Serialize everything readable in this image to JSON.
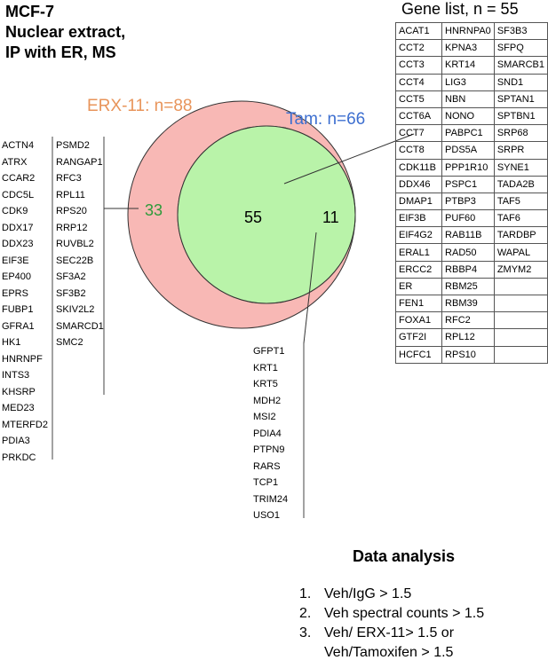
{
  "title": {
    "line1": "MCF-7",
    "line2": "Nuclear extract,",
    "line3": "IP with ER, MS"
  },
  "gene_list_title": "Gene list, n = 55",
  "venn": {
    "left_label": "ERX-11: n=88",
    "right_label": "Tam: n=66",
    "left_only_count": "33",
    "intersection_count": "55",
    "right_only_count": "11",
    "left_color": "#f8b8b5",
    "right_color": "#b8f7f8",
    "intersection_color": "#b9f3a9",
    "left_label_color": "#e8945a",
    "right_label_color": "#3d6fd0",
    "left_count_color": "#2d9a3a"
  },
  "erx_only_genes": {
    "column1": [
      "ACTN4",
      "ATRX",
      "CCAR2",
      "CDC5L",
      "CDK9",
      "DDX17",
      "DDX23",
      "EIF3E",
      "EP400",
      "EPRS",
      "FUBP1",
      "GFRA1",
      "HK1",
      "HNRNPF",
      "INTS3",
      "KHSRP",
      "MED23",
      "MTERFD2",
      "PDIA3",
      "PRKDC"
    ],
    "column2": [
      "PSMD2",
      "RANGAP1",
      "RFC3",
      "RPL11",
      "RPS20",
      "RRP12",
      "RUVBL2",
      "SEC22B",
      "SF3A2",
      "SF3B2",
      "SKIV2L2",
      "SMARCD1",
      "SMC2"
    ]
  },
  "tam_only_genes": [
    "GFPT1",
    "KRT1",
    "KRT5",
    "MDH2",
    "MSI2",
    "PDIA4",
    "PTPN9",
    "RARS",
    "TCP1",
    "TRIM24",
    "USO1"
  ],
  "gene_table": {
    "column1": [
      "ACAT1",
      "CCT2",
      "CCT3",
      "CCT4",
      "CCT5",
      "CCT6A",
      "CCT7",
      "CCT8",
      "CDK11B",
      "DDX46",
      "DMAP1",
      "EIF3B",
      "EIF4G2",
      "ERAL1",
      "ERCC2",
      "ER",
      "FEN1",
      "FOXA1",
      "GTF2I",
      "HCFC1"
    ],
    "column2": [
      "HNRNPA0",
      "KPNA3",
      "KRT14",
      "LIG3",
      "NBN",
      "NONO",
      "PABPC1",
      "PDS5A",
      "PPP1R10",
      "PSPC1",
      "PTBP3",
      "PUF60",
      "RAB11B",
      "RAD50",
      "RBBP4",
      "RBM25",
      "RBM39",
      "RFC2",
      "RPL12",
      "RPS10"
    ],
    "column3": [
      "SF3B3",
      "SFPQ",
      "SMARCB1",
      "SND1",
      "SPTAN1",
      "SPTBN1",
      "SRP68",
      "SRPR",
      "SYNE1",
      "TADA2B",
      "TAF5",
      "TAF6",
      "TARDBP",
      "WAPAL",
      "ZMYM2",
      "",
      "",
      "",
      "",
      ""
    ]
  },
  "analysis": {
    "title": "Data analysis",
    "steps": [
      {
        "num": "1.",
        "text": "Veh/IgG > 1.5"
      },
      {
        "num": "2.",
        "text": "Veh spectral counts > 1.5"
      },
      {
        "num": "3.",
        "text": "Veh/ ERX-11> 1.5 or"
      }
    ],
    "step3_continuation": "Veh/Tamoxifen > 1.5"
  }
}
